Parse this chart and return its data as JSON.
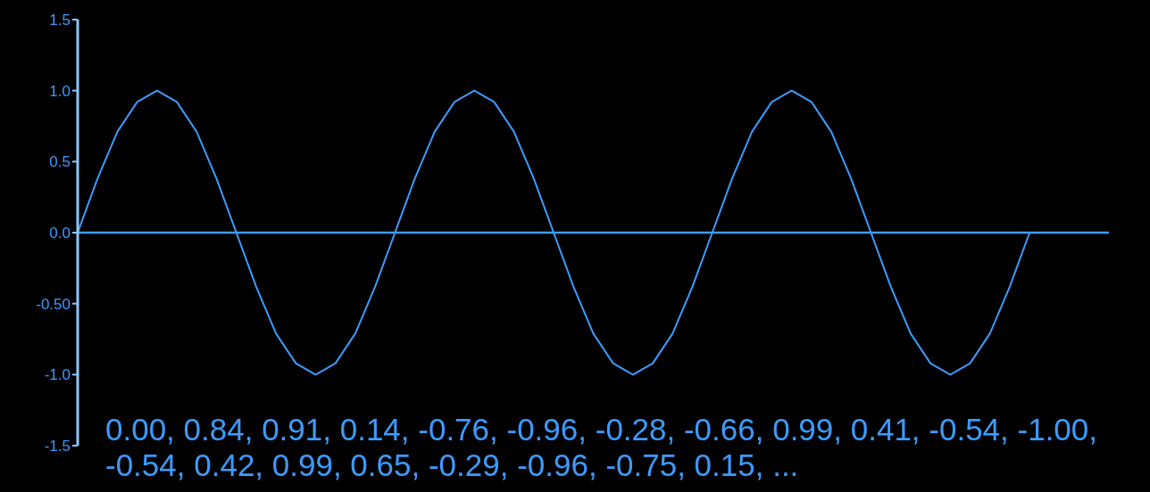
{
  "chart_data": {
    "type": "line",
    "categories": [
      null,
      null,
      null,
      null,
      null,
      null,
      null,
      null,
      null,
      null,
      null,
      null,
      null,
      null,
      null,
      null,
      null,
      null,
      null,
      null,
      null,
      null,
      null,
      null,
      null,
      null,
      null,
      null,
      null,
      null,
      null,
      null,
      null,
      null,
      null,
      null,
      null,
      null,
      null,
      null,
      null,
      null,
      null,
      null,
      null,
      null,
      null,
      null,
      null,
      null,
      null,
      null,
      null
    ],
    "series": [
      {
        "color": "#3d9bff",
        "values": [
          0,
          0.38,
          0.71,
          0.92,
          1,
          0.92,
          0.71,
          0.38,
          0,
          -0.38,
          -0.71,
          -0.92,
          -1,
          -0.92,
          -0.71,
          -0.38,
          0,
          0.38,
          0.71,
          0.92,
          1,
          0.92,
          0.71,
          0.38,
          0,
          -0.38,
          -0.71,
          -0.92,
          -1,
          -0.92,
          -0.71,
          -0.38,
          0,
          0.38,
          0.71,
          0.92,
          1,
          0.92,
          0.71,
          0.38,
          0,
          -0.38,
          -0.71,
          -0.92,
          -1,
          -0.92,
          -0.71,
          -0.38,
          0,
          null,
          null,
          null,
          null
        ]
      }
    ],
    "ylim": [
      -1.5,
      1.5
    ],
    "yticks": [
      1.5,
      {
        "value": 1,
        "label": "1.0"
      },
      0.5,
      {
        "value": 0,
        "label": "0.0"
      },
      {
        "value": -0.5,
        "label": "-0.50"
      },
      {
        "value": -1,
        "label": "-1.0"
      },
      -1.5
    ],
    "ref_lines": [
      {
        "axis": "y",
        "value": 0,
        "color": "#3d9bff"
      }
    ],
    "tick_labels": "y",
    "grid": false,
    "marker": "none",
    "line_style": "solid",
    "annotations": [
      "0.00, 0.84, 0.91, 0.14, -0.76, -0.96, -0.28, -0.66, 0.99, 0.41, -0.54, -1.00, -0.54, 0.42, 0.99, 0.65, -0.29, -0.96, -0.75, 0.15, ..."
    ]
  }
}
